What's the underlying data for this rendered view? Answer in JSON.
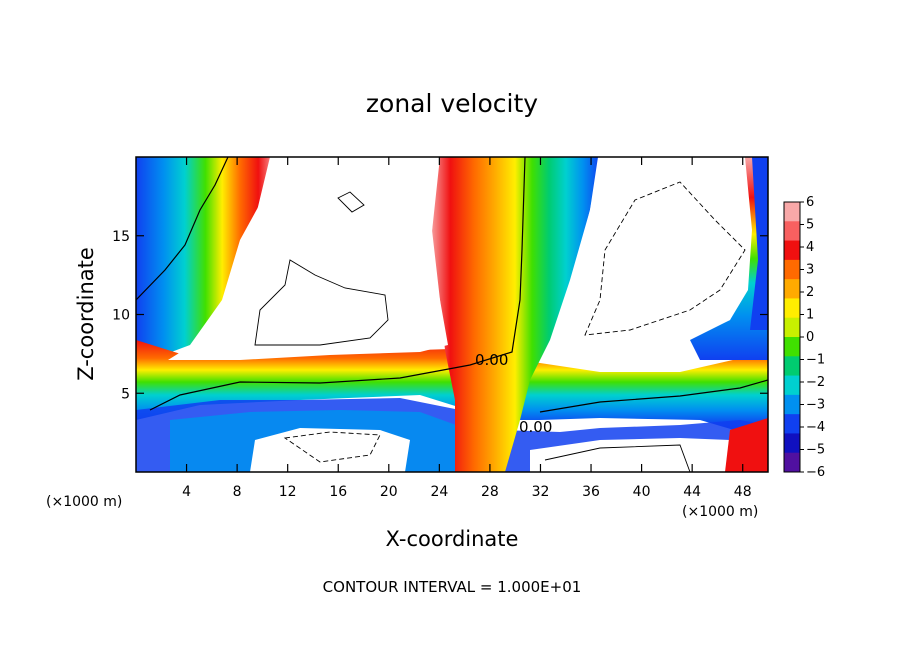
{
  "chart_data": {
    "type": "heatmap",
    "title": "zonal velocity",
    "xlabel": "X-coordinate",
    "ylabel": "Z-coordinate",
    "x_unit": "(×1000 m)",
    "y_unit": "(×1000 m)",
    "xlim": [
      0,
      50
    ],
    "ylim": [
      0,
      20
    ],
    "x_ticks": [
      4,
      8,
      12,
      16,
      20,
      24,
      28,
      32,
      36,
      40,
      44,
      48
    ],
    "y_ticks": [
      5,
      10,
      15
    ],
    "colorbar": {
      "ticks": [
        6,
        5,
        4,
        3,
        2,
        1,
        0,
        -1,
        -2,
        -3,
        -4,
        -5,
        -6
      ],
      "range": [
        -6,
        6
      ],
      "colors": [
        "#f8a8a8",
        "#f86060",
        "#f01010",
        "#ff6a00",
        "#ffaa00",
        "#ffee00",
        "#c8f000",
        "#40e000",
        "#00cc70",
        "#00d0d0",
        "#0090f0",
        "#1040f0",
        "#1010c0",
        "#5010a0"
      ]
    },
    "contour_labels": [
      "0.00",
      "0.00"
    ],
    "footer": "CONTOUR INTERVAL = 1.000E+01"
  }
}
